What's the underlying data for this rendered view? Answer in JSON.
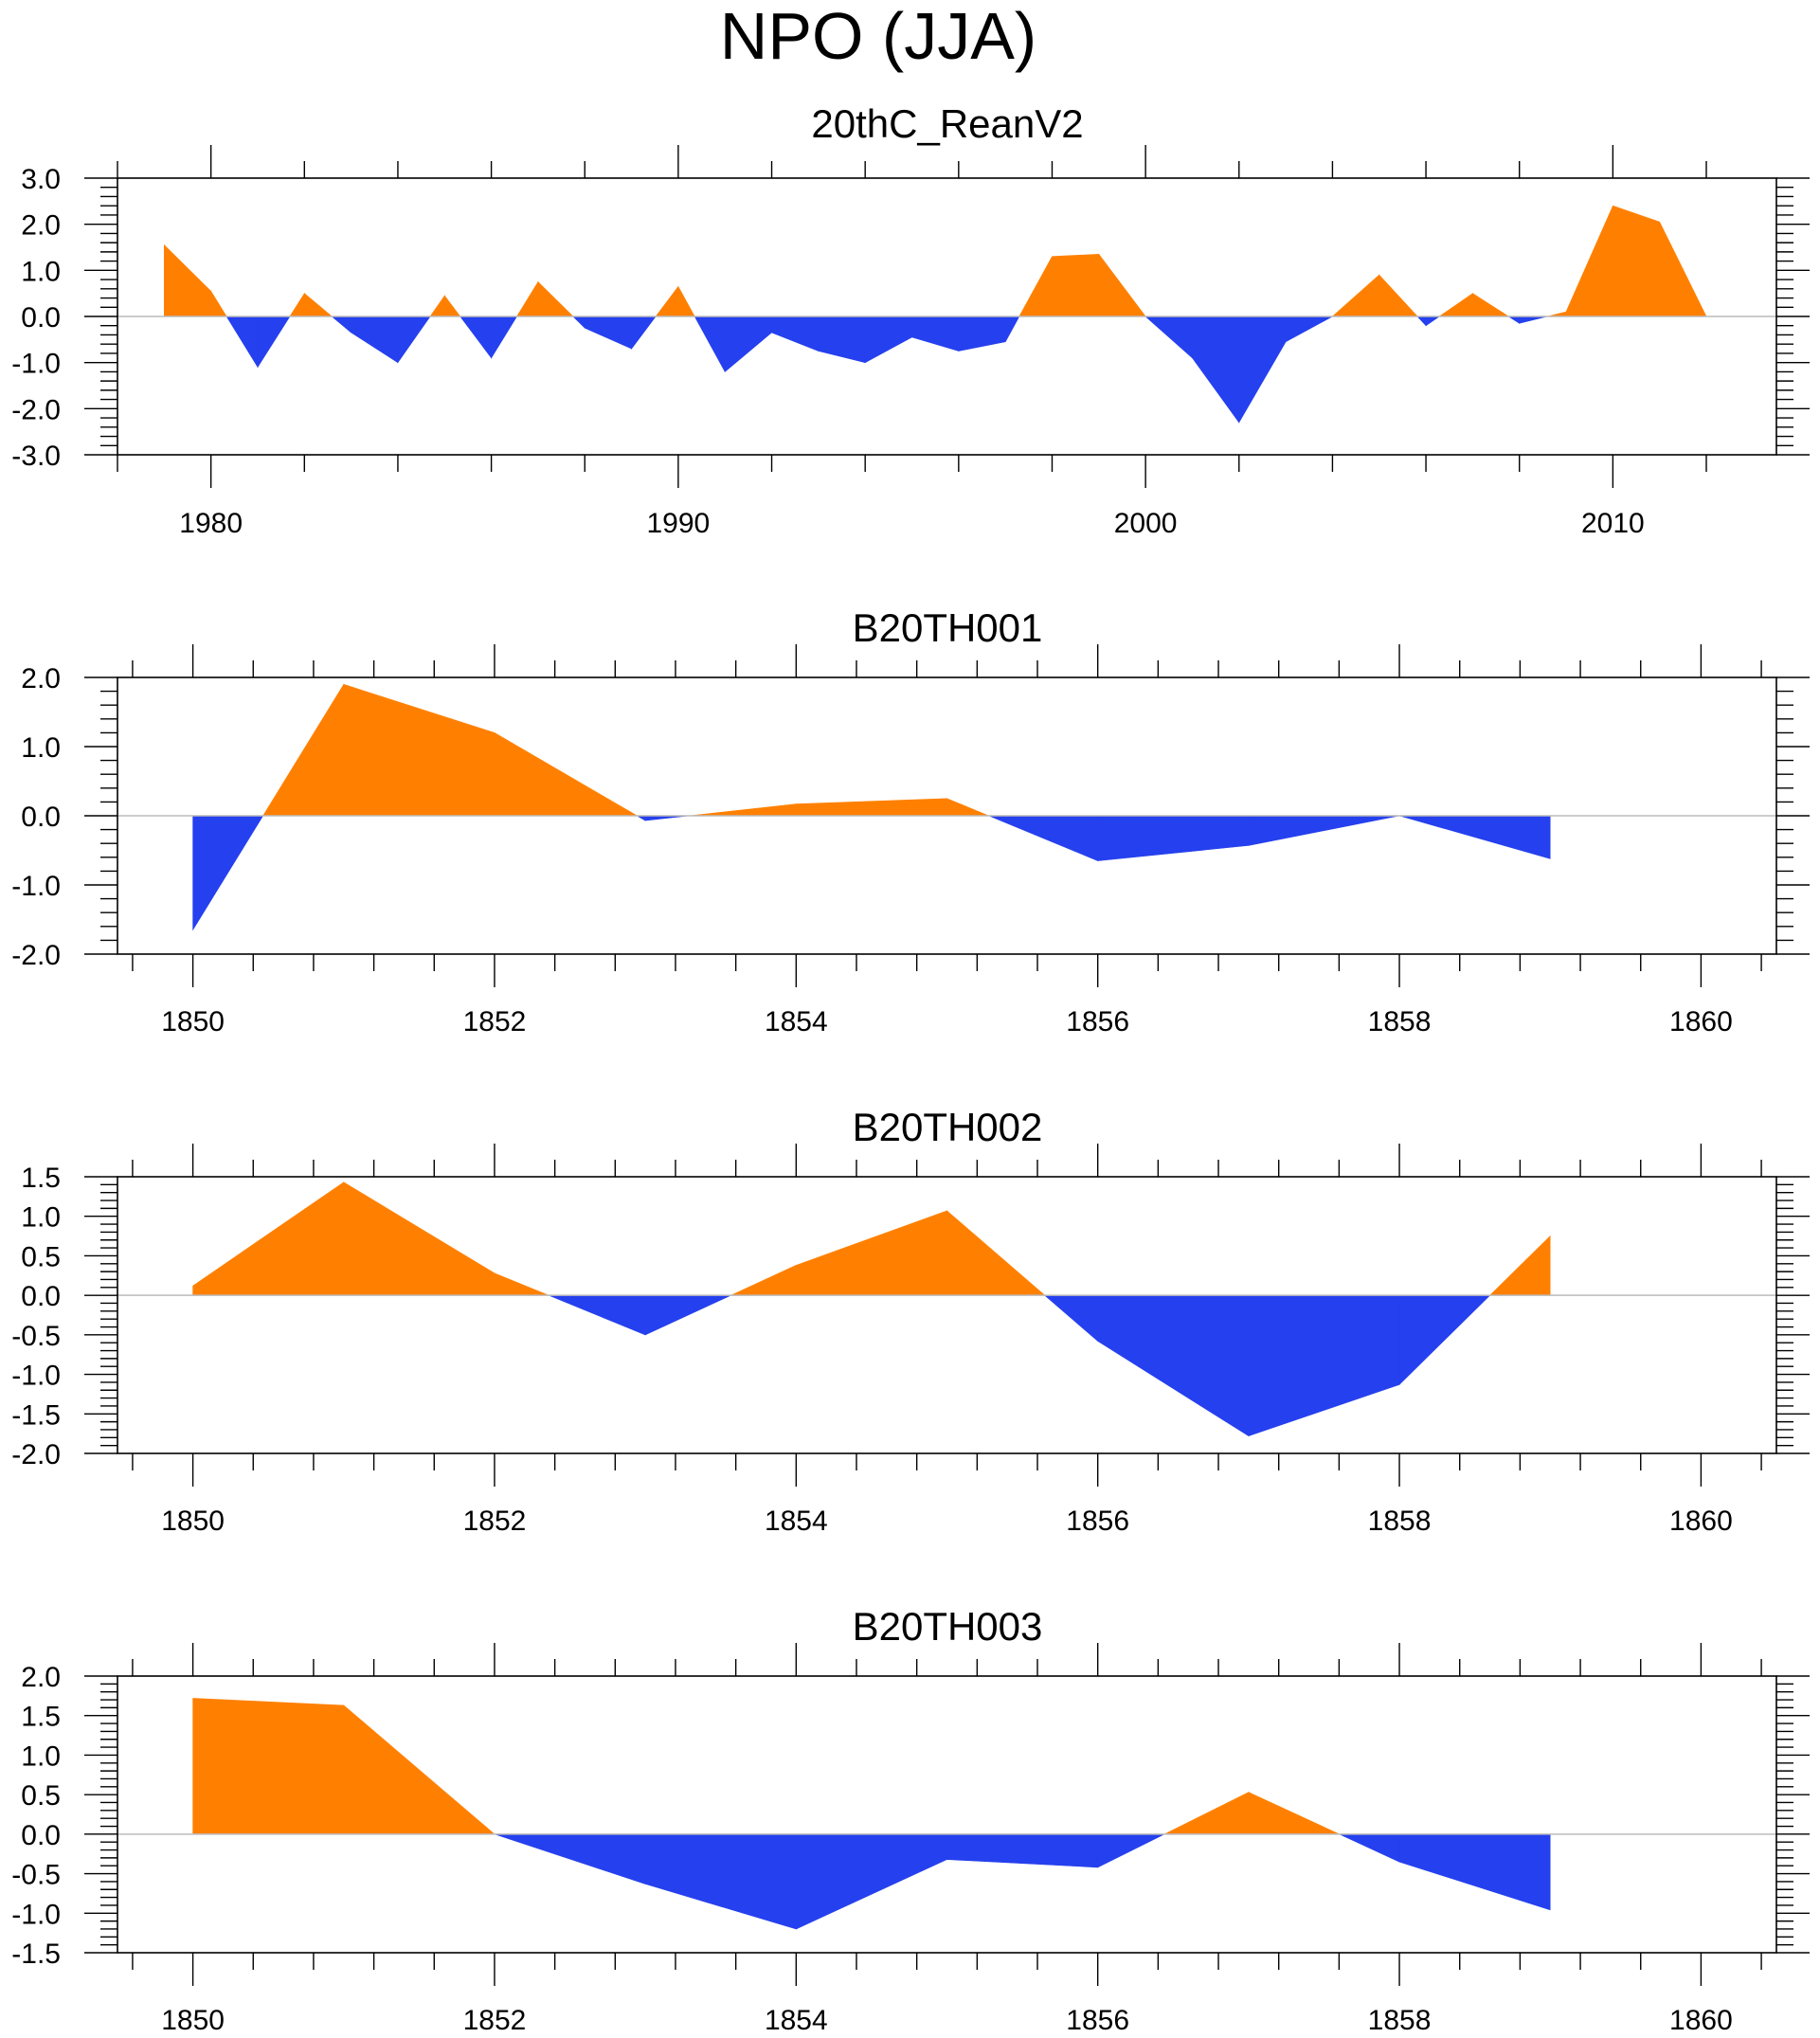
{
  "figure": {
    "title": "NPO (JJA)",
    "colors": {
      "positive": "#ff8000",
      "negative": "#2540ee",
      "zero_line": "#bbbbbb",
      "axis": "#000000"
    }
  },
  "chart_data": [
    {
      "type": "area",
      "title": "20thC_ReanV2",
      "xlabel": "",
      "ylabel": "",
      "xlim": [
        1978,
        2013.5
      ],
      "ylim": [
        -3.0,
        3.0
      ],
      "xticks": [
        1980,
        1990,
        2000,
        2010
      ],
      "xtick_labels": [
        "1980",
        "1990",
        "2000",
        "2010"
      ],
      "yticks": [
        -3,
        -2,
        -1,
        0,
        1,
        2,
        3
      ],
      "ytick_labels": [
        "-3.0",
        "-2.0",
        "-1.0",
        "0.0",
        "1.0",
        "2.0",
        "3.0"
      ],
      "x": [
        1979,
        1980,
        1981,
        1982,
        1983,
        1984,
        1985,
        1986,
        1987,
        1988,
        1989,
        1990,
        1991,
        1992,
        1993,
        1994,
        1995,
        1996,
        1997,
        1998,
        1999,
        2000,
        2001,
        2002,
        2003,
        2004,
        2005,
        2006,
        2007,
        2008,
        2009,
        2010,
        2011,
        2012
      ],
      "values": [
        1.55,
        0.55,
        -1.1,
        0.5,
        -0.35,
        -1.0,
        0.45,
        -0.9,
        0.75,
        -0.25,
        -0.7,
        0.65,
        -1.2,
        -0.35,
        -0.75,
        -1.0,
        -0.45,
        -0.75,
        -0.55,
        1.3,
        1.35,
        0.0,
        -0.9,
        -2.3,
        -0.55,
        0.0,
        0.9,
        -0.2,
        0.5,
        -0.15,
        0.1,
        2.4,
        2.05,
        0.0
      ]
    },
    {
      "type": "area",
      "title": "B20TH001",
      "xlabel": "",
      "ylabel": "",
      "xlim": [
        1849.5,
        1860.5
      ],
      "ylim": [
        -2.0,
        2.0
      ],
      "xticks": [
        1850,
        1852,
        1854,
        1856,
        1858,
        1860
      ],
      "xtick_labels": [
        "1850",
        "1852",
        "1854",
        "1856",
        "1858",
        "1860"
      ],
      "yticks": [
        -2,
        -1,
        0,
        1,
        2
      ],
      "ytick_labels": [
        "-2.0",
        "-1.0",
        "0.0",
        "1.0",
        "2.0"
      ],
      "x": [
        1850,
        1851,
        1852,
        1853,
        1854,
        1855,
        1856,
        1857,
        1858,
        1859
      ],
      "values": [
        -1.65,
        1.9,
        1.2,
        -0.07,
        0.17,
        0.25,
        -0.65,
        -0.43,
        0.0,
        -0.62
      ]
    },
    {
      "type": "area",
      "title": "B20TH002",
      "xlabel": "",
      "ylabel": "",
      "xlim": [
        1849.5,
        1860.5
      ],
      "ylim": [
        -2.0,
        1.5
      ],
      "xticks": [
        1850,
        1852,
        1854,
        1856,
        1858,
        1860
      ],
      "xtick_labels": [
        "1850",
        "1852",
        "1854",
        "1856",
        "1858",
        "1860"
      ],
      "yticks": [
        -2,
        -1.5,
        -1,
        -0.5,
        0,
        0.5,
        1,
        1.5
      ],
      "ytick_labels": [
        "-2.0",
        "-1.5",
        "-1.0",
        "-0.5",
        "0.0",
        "0.5",
        "1.0",
        "1.5"
      ],
      "x": [
        1850,
        1851,
        1852,
        1853,
        1854,
        1855,
        1856,
        1857,
        1858,
        1859
      ],
      "values": [
        0.12,
        1.43,
        0.28,
        -0.5,
        0.38,
        1.07,
        -0.58,
        -1.78,
        -1.13,
        0.75
      ]
    },
    {
      "type": "area",
      "title": "B20TH003",
      "xlabel": "",
      "ylabel": "",
      "xlim": [
        1849.5,
        1860.5
      ],
      "ylim": [
        -1.5,
        2.0
      ],
      "xticks": [
        1850,
        1852,
        1854,
        1856,
        1858,
        1860
      ],
      "xtick_labels": [
        "1850",
        "1852",
        "1854",
        "1856",
        "1858",
        "1860"
      ],
      "yticks": [
        -1.5,
        -1,
        -0.5,
        0,
        0.5,
        1,
        1.5,
        2
      ],
      "ytick_labels": [
        "-1.5",
        "-1.0",
        "-0.5",
        "0.0",
        "0.5",
        "1.0",
        "1.5",
        "2.0"
      ],
      "x": [
        1850,
        1851,
        1852,
        1853,
        1854,
        1855,
        1856,
        1857,
        1858,
        1859
      ],
      "values": [
        1.72,
        1.63,
        0.0,
        -0.63,
        -1.2,
        -0.32,
        -0.42,
        0.53,
        -0.35,
        -0.96
      ]
    }
  ]
}
